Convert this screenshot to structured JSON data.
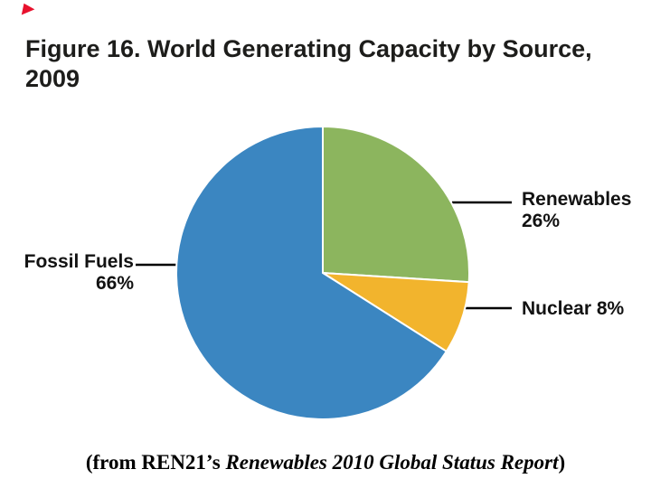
{
  "figure": {
    "title": "Figure 16. World Generating Capacity by Source,\n2009"
  },
  "chart_data": {
    "type": "pie",
    "title": "Figure 16. World Generating Capacity by Source, 2009",
    "categories": [
      "Renewables",
      "Nuclear",
      "Fossil Fuels"
    ],
    "values": [
      26,
      8,
      66
    ],
    "unit": "%",
    "slices": [
      {
        "label": "Renewables",
        "value": 26,
        "color": "#8CB55E"
      },
      {
        "label": "Nuclear",
        "value": 8,
        "color": "#F2B42D"
      },
      {
        "label": "Fossil Fuels",
        "value": 66,
        "color": "#3B86C1"
      }
    ],
    "start_angle": "12 o'clock",
    "direction": "clockwise",
    "legend_position": "callout-labels"
  },
  "labels": {
    "fossil_line1": "Fossil Fuels",
    "fossil_line2": "66%",
    "renewables_line1": "Renewables",
    "renewables_line2": "26%",
    "nuclear": "Nuclear 8%"
  },
  "caption": {
    "prefix": "(from REN21’s ",
    "italic": "Renewables 2010 Global Status Report",
    "suffix": ")"
  },
  "colors": {
    "fossil_fuels": "#3B86C1",
    "renewables": "#8CB55E",
    "nuclear": "#F2B42D",
    "leader_line": "#000000",
    "title_text": "#1D1D1B",
    "background": "#FFFFFF",
    "marker_red": "#E8112D"
  }
}
